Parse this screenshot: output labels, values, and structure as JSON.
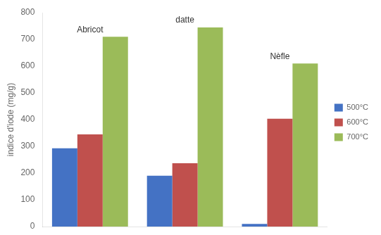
{
  "chart_data": {
    "type": "bar",
    "categories": [
      "Abricot",
      "datte",
      "Nèfle"
    ],
    "series": [
      {
        "name": "500°C",
        "color": "#4472C4",
        "values": [
          293,
          190,
          10
        ]
      },
      {
        "name": "600°C",
        "color": "#C0504D",
        "values": [
          345,
          237,
          403
        ]
      },
      {
        "name": "700°C",
        "color": "#9BBB59",
        "values": [
          710,
          745,
          610
        ]
      }
    ],
    "ylabel": "indice d'iode (mg/g)",
    "ylim": [
      0,
      800
    ],
    "yticks": [
      0,
      100,
      200,
      300,
      400,
      500,
      600,
      700,
      800
    ],
    "grid": false,
    "legend": "right",
    "tick_labels": "y"
  }
}
